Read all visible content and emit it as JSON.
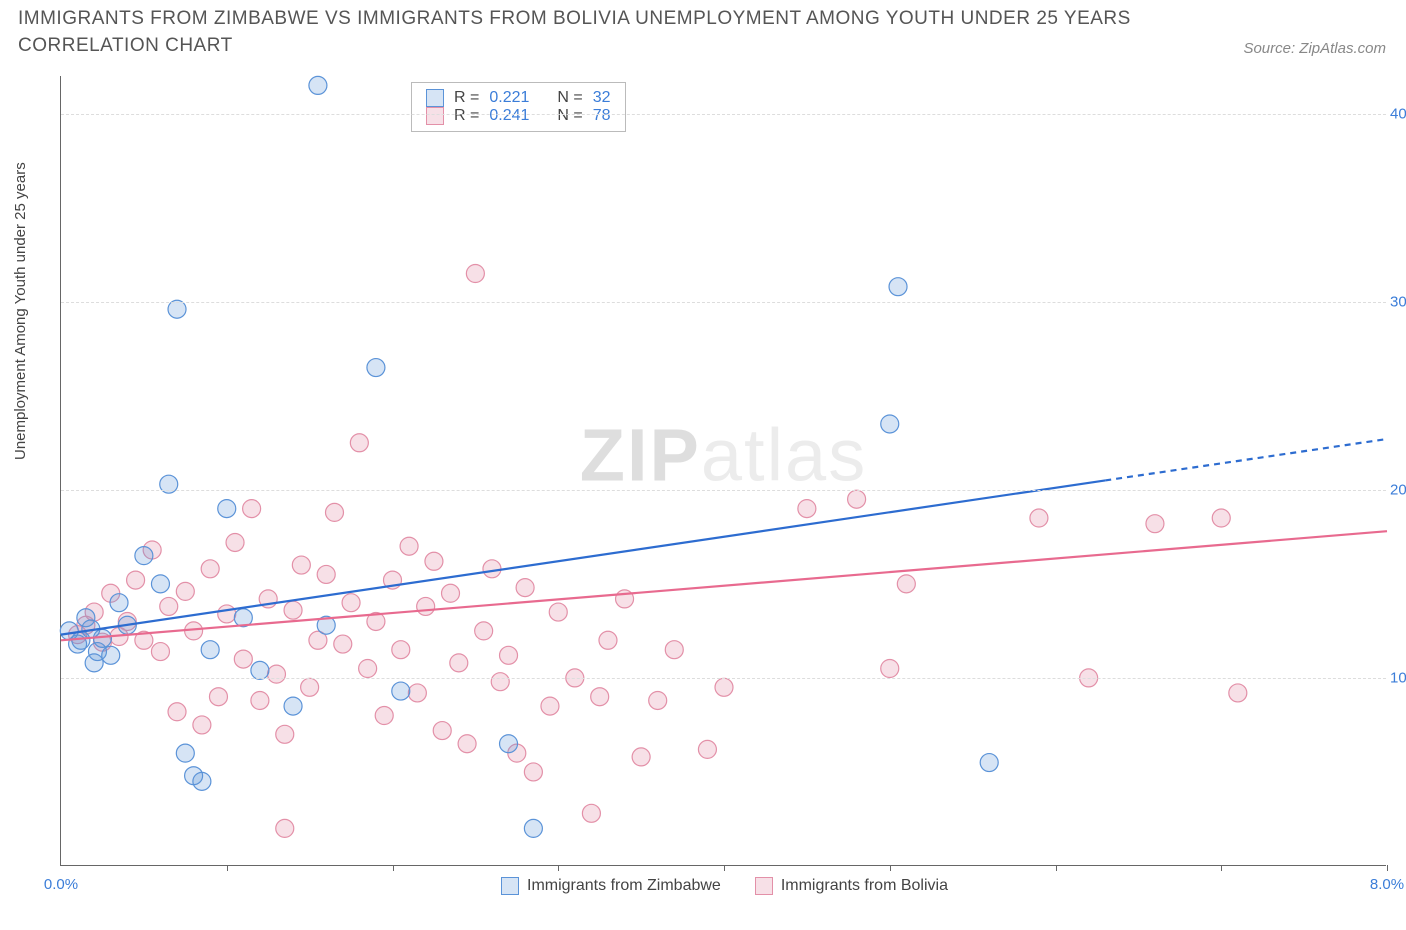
{
  "title": "IMMIGRANTS FROM ZIMBABWE VS IMMIGRANTS FROM BOLIVIA UNEMPLOYMENT AMONG YOUTH UNDER 25 YEARS CORRELATION CHART",
  "source": "Source: ZipAtlas.com",
  "ylabel": "Unemployment Among Youth under 25 years",
  "watermark_bold": "ZIP",
  "watermark_rest": "atlas",
  "chart": {
    "type": "scatter",
    "xlim": [
      0,
      8
    ],
    "ylim": [
      0,
      42
    ],
    "xtick_positions": [
      1,
      2,
      3,
      4,
      5,
      6,
      7,
      8
    ],
    "xtick_labels_shown": {
      "0": "0.0%",
      "8": "8.0%"
    },
    "ytick_positions": [
      10,
      20,
      30,
      40
    ],
    "ytick_labels": [
      "10.0%",
      "20.0%",
      "30.0%",
      "40.0%"
    ],
    "grid_color": "#e5e5e5",
    "background_color": "#ffffff",
    "marker_radius": 9,
    "marker_stroke_width": 1.2,
    "marker_fill_opacity": 0.25,
    "line_width": 2.2,
    "series": [
      {
        "name": "Immigrants from Zimbabwe",
        "color_stroke": "#5b93d8",
        "color_fill": "rgba(91,147,216,0.25)",
        "line_color": "#2d6cd0",
        "R": "0.221",
        "N": "32",
        "regression": {
          "x1": 0,
          "y1": 12.3,
          "x2": 6.3,
          "y2": 20.5,
          "dash_x2": 8,
          "dash_y2": 22.7
        },
        "points": [
          [
            0.05,
            12.5
          ],
          [
            0.1,
            11.8
          ],
          [
            0.12,
            12.0
          ],
          [
            0.15,
            13.2
          ],
          [
            0.18,
            12.6
          ],
          [
            0.2,
            10.8
          ],
          [
            0.22,
            11.4
          ],
          [
            0.25,
            12.1
          ],
          [
            0.3,
            11.2
          ],
          [
            0.35,
            14.0
          ],
          [
            0.4,
            12.8
          ],
          [
            0.5,
            16.5
          ],
          [
            0.6,
            15.0
          ],
          [
            0.65,
            20.3
          ],
          [
            0.7,
            29.6
          ],
          [
            0.75,
            6.0
          ],
          [
            0.8,
            4.8
          ],
          [
            0.85,
            4.5
          ],
          [
            0.9,
            11.5
          ],
          [
            1.0,
            19.0
          ],
          [
            1.1,
            13.2
          ],
          [
            1.2,
            10.4
          ],
          [
            1.4,
            8.5
          ],
          [
            1.55,
            41.5
          ],
          [
            1.6,
            12.8
          ],
          [
            1.9,
            26.5
          ],
          [
            2.05,
            9.3
          ],
          [
            2.7,
            6.5
          ],
          [
            2.85,
            2.0
          ],
          [
            5.0,
            23.5
          ],
          [
            5.05,
            30.8
          ],
          [
            5.6,
            5.5
          ]
        ]
      },
      {
        "name": "Immigrants from Bolivia",
        "color_stroke": "#e390a8",
        "color_fill": "rgba(227,144,168,0.28)",
        "line_color": "#e86a8f",
        "R": "0.241",
        "N": "78",
        "regression": {
          "x1": 0,
          "y1": 12.0,
          "x2": 8,
          "y2": 17.8
        },
        "points": [
          [
            0.1,
            12.3
          ],
          [
            0.15,
            12.8
          ],
          [
            0.2,
            13.5
          ],
          [
            0.25,
            11.9
          ],
          [
            0.3,
            14.5
          ],
          [
            0.35,
            12.2
          ],
          [
            0.4,
            13.0
          ],
          [
            0.45,
            15.2
          ],
          [
            0.5,
            12.0
          ],
          [
            0.55,
            16.8
          ],
          [
            0.6,
            11.4
          ],
          [
            0.65,
            13.8
          ],
          [
            0.7,
            8.2
          ],
          [
            0.75,
            14.6
          ],
          [
            0.8,
            12.5
          ],
          [
            0.85,
            7.5
          ],
          [
            0.9,
            15.8
          ],
          [
            0.95,
            9.0
          ],
          [
            1.0,
            13.4
          ],
          [
            1.05,
            17.2
          ],
          [
            1.1,
            11.0
          ],
          [
            1.15,
            19.0
          ],
          [
            1.2,
            8.8
          ],
          [
            1.25,
            14.2
          ],
          [
            1.3,
            10.2
          ],
          [
            1.35,
            7.0
          ],
          [
            1.4,
            13.6
          ],
          [
            1.45,
            16.0
          ],
          [
            1.5,
            9.5
          ],
          [
            1.55,
            12.0
          ],
          [
            1.6,
            15.5
          ],
          [
            1.65,
            18.8
          ],
          [
            1.7,
            11.8
          ],
          [
            1.75,
            14.0
          ],
          [
            1.8,
            22.5
          ],
          [
            1.85,
            10.5
          ],
          [
            1.9,
            13.0
          ],
          [
            1.95,
            8.0
          ],
          [
            2.0,
            15.2
          ],
          [
            2.05,
            11.5
          ],
          [
            2.1,
            17.0
          ],
          [
            2.15,
            9.2
          ],
          [
            2.2,
            13.8
          ],
          [
            2.25,
            16.2
          ],
          [
            2.3,
            7.2
          ],
          [
            2.35,
            14.5
          ],
          [
            2.4,
            10.8
          ],
          [
            2.45,
            6.5
          ],
          [
            2.5,
            31.5
          ],
          [
            2.55,
            12.5
          ],
          [
            2.6,
            15.8
          ],
          [
            2.65,
            9.8
          ],
          [
            2.7,
            11.2
          ],
          [
            2.75,
            6.0
          ],
          [
            2.8,
            14.8
          ],
          [
            2.85,
            5.0
          ],
          [
            2.95,
            8.5
          ],
          [
            3.0,
            13.5
          ],
          [
            3.1,
            10.0
          ],
          [
            3.2,
            2.8
          ],
          [
            3.25,
            9.0
          ],
          [
            3.3,
            12.0
          ],
          [
            3.4,
            14.2
          ],
          [
            3.5,
            5.8
          ],
          [
            3.6,
            8.8
          ],
          [
            3.7,
            11.5
          ],
          [
            3.9,
            6.2
          ],
          [
            4.0,
            9.5
          ],
          [
            4.5,
            19.0
          ],
          [
            4.8,
            19.5
          ],
          [
            5.0,
            10.5
          ],
          [
            5.1,
            15.0
          ],
          [
            5.9,
            18.5
          ],
          [
            6.2,
            10.0
          ],
          [
            6.6,
            18.2
          ],
          [
            7.0,
            18.5
          ],
          [
            7.1,
            9.2
          ],
          [
            1.35,
            2.0
          ]
        ]
      }
    ],
    "legend_top_labels": {
      "R_label": "R =",
      "N_label": "N ="
    }
  }
}
